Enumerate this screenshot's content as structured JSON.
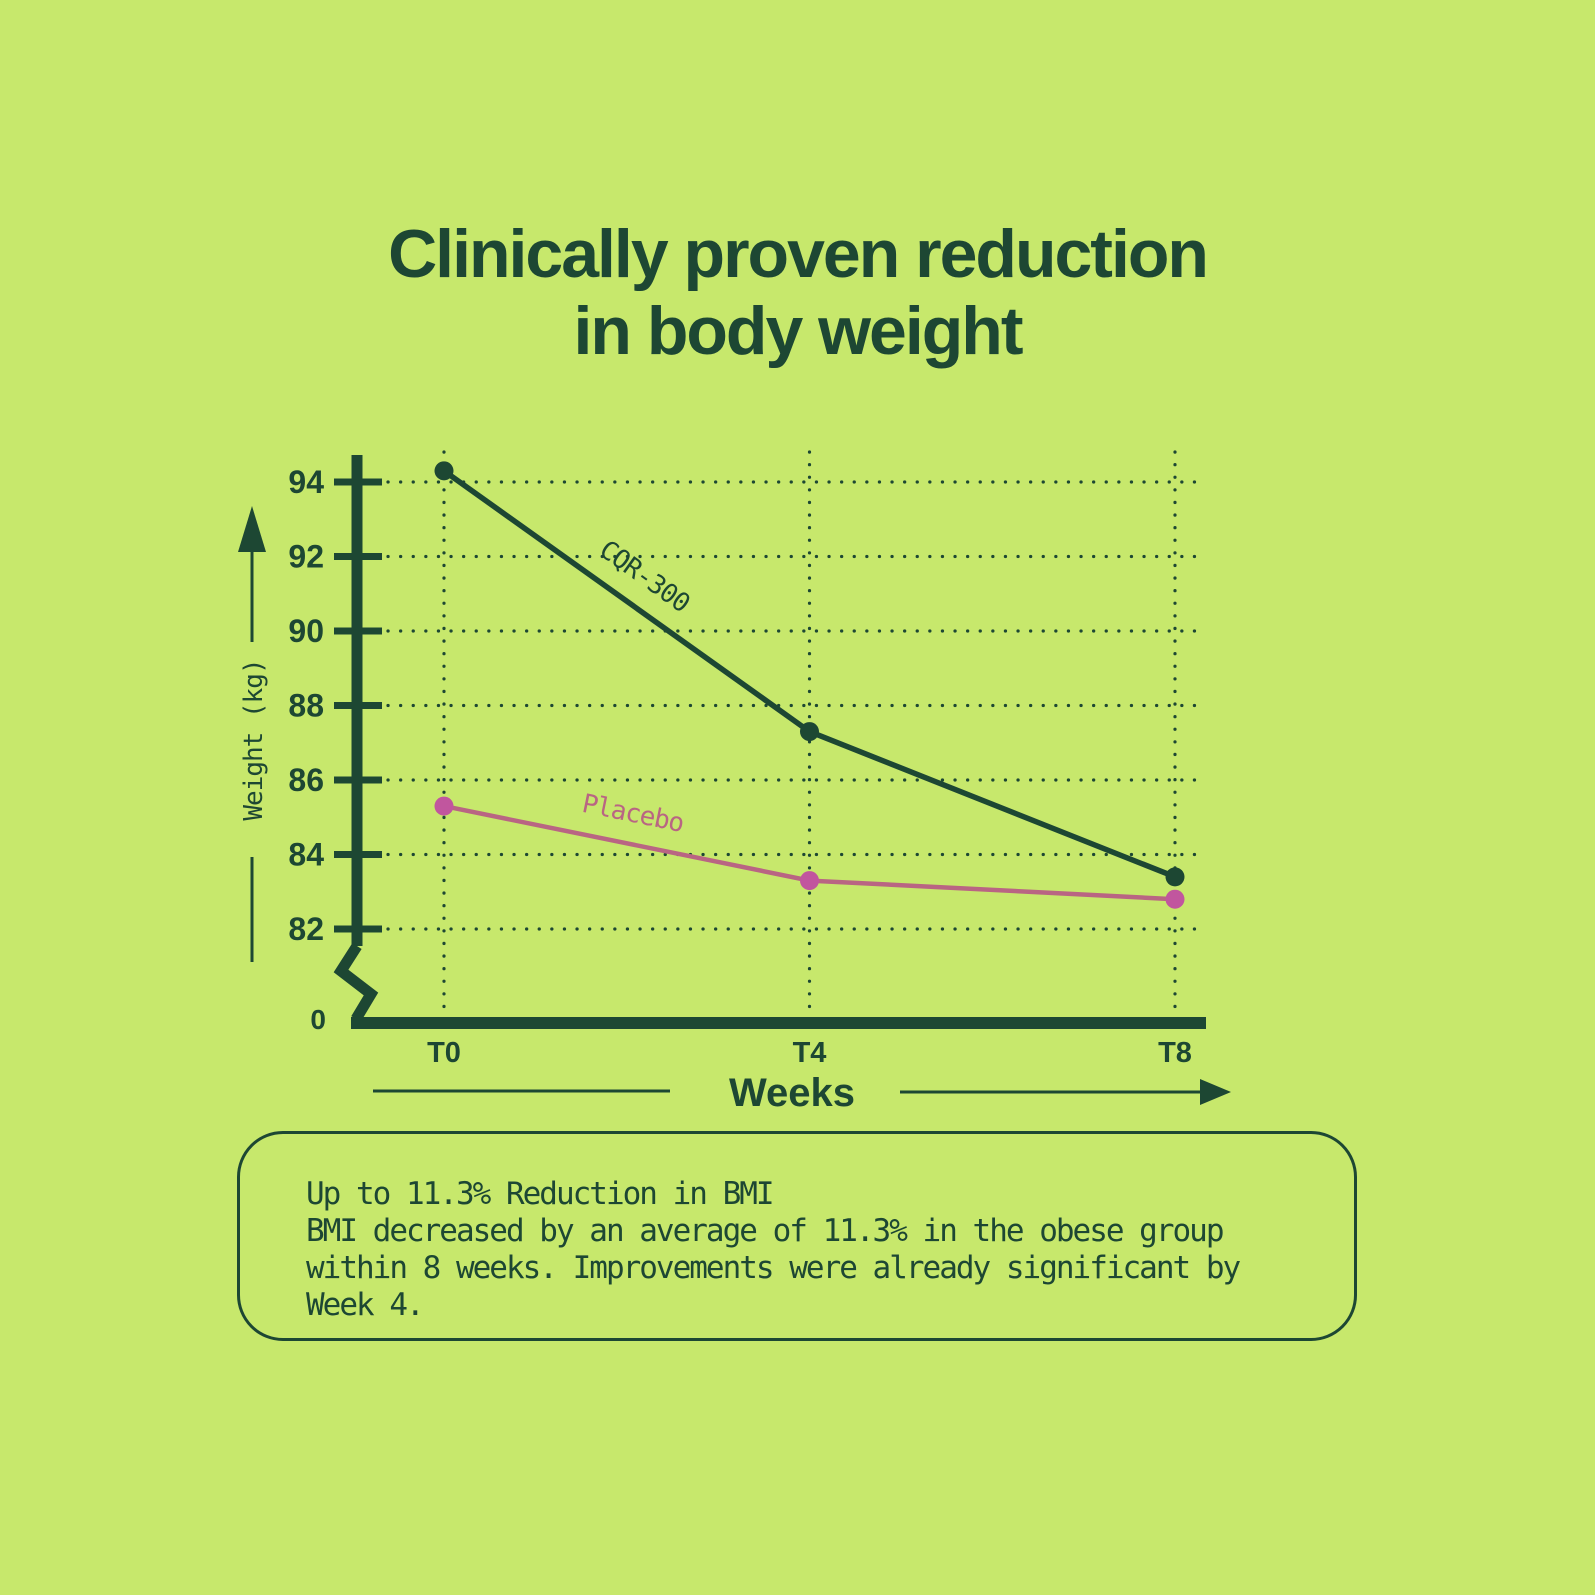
{
  "page": {
    "background": "#c7e86c",
    "foreground": "#1d4733"
  },
  "title": {
    "line1": "Clinically proven reduction",
    "line2": "in body weight"
  },
  "chart_data": {
    "type": "line",
    "x": [
      "T0",
      "T4",
      "T8"
    ],
    "xlabel": "Weeks",
    "ylabel": "Weight (kg)",
    "y_ticks": [
      0,
      82,
      84,
      86,
      88,
      90,
      92,
      94
    ],
    "ylim_display": [
      82,
      94
    ],
    "axis_break_at_zero": true,
    "grid": "dotted",
    "legend_position": "inline-on-lines",
    "series": [
      {
        "name": "CQR-300",
        "values": [
          94.3,
          87.3,
          83.4
        ],
        "line_color": "#1d4733",
        "dot_color": "#1d4733"
      },
      {
        "name": "Placebo",
        "values": [
          85.3,
          83.3,
          82.8
        ],
        "line_color": "#b96583",
        "dot_color": "#c1569e"
      }
    ]
  },
  "callout": {
    "heading": "Up to 11.3% Reduction in BMI",
    "body": "BMI decreased by an average of 11.3% in the obese group within 8 weeks. Improvements were already significant by Week 4."
  }
}
